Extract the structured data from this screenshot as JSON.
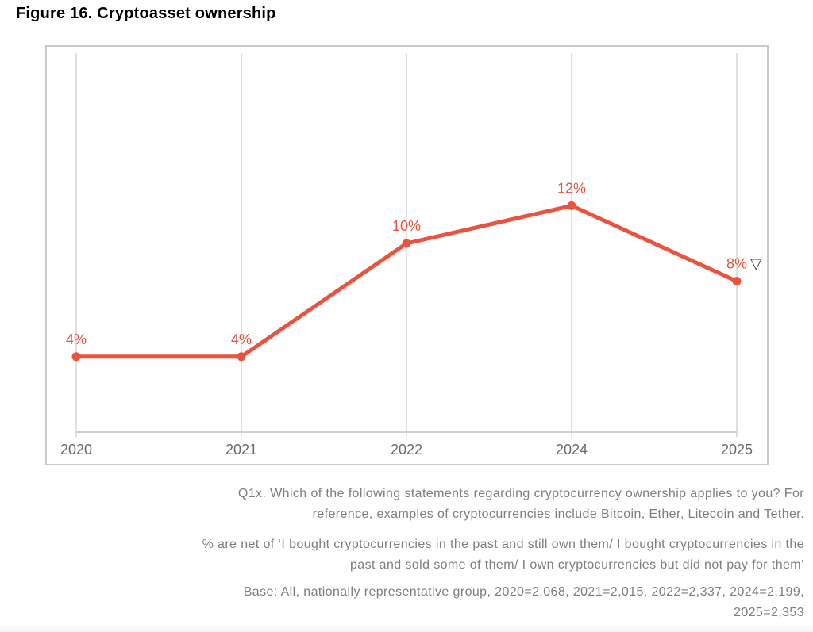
{
  "figure": {
    "title": "Figure 16. Cryptoasset ownership"
  },
  "chart_data": {
    "type": "line",
    "title": "Figure 16. Cryptoasset ownership",
    "categories": [
      "2020",
      "2021",
      "2022",
      "2024",
      "2025"
    ],
    "series": [
      {
        "name": "Cryptoasset ownership (net %)",
        "values": [
          4,
          4,
          10,
          12,
          8
        ]
      }
    ],
    "data_labels": [
      "4%",
      "4%",
      "10%",
      "12%",
      "8%"
    ],
    "last_point_marker": "▽",
    "last_point_marker_meaning": "decrease vs prior year",
    "xlabel": "",
    "ylabel": "",
    "ylim": [
      0,
      20
    ],
    "grid": "vertical-gridlines-only",
    "legend": "none",
    "line_color": "#e8543f",
    "gridline_color": "#e0e0e0",
    "axis_color": "#cfcfcf",
    "tick_label_color": "#6a6a6a",
    "marker_glyph_color": "#3f3f3f"
  },
  "captions": {
    "question_lines": [
      "Q1x. Which of the following statements regarding cryptocurrency ownership applies to you? For",
      "reference, examples of cryptocurrencies include Bitcoin, Ether, Litecoin and Tether."
    ],
    "net_note_lines": [
      "% are net of ‘I bought cryptocurrencies in the past and still own them/ I bought cryptocurrencies in the",
      "past and sold some of them/ I own cryptocurrencies but did not pay for them’"
    ],
    "base_lines": [
      "Base: All, nationally representative group, 2020=2,068, 2021=2,015, 2022=2,337, 2024=2,199,",
      "2025=2,353"
    ]
  }
}
